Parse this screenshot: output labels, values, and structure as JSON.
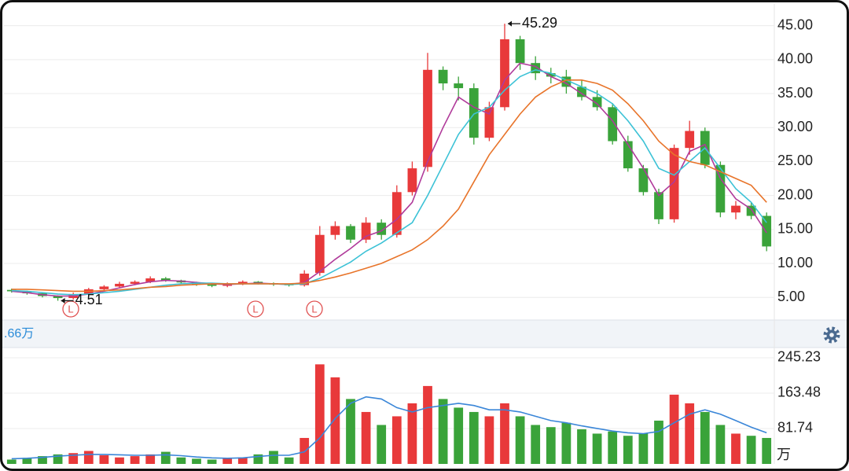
{
  "chart_data": {
    "type": "candlestick",
    "open": [
      6.1,
      5.9,
      5.6,
      5.2,
      4.9,
      5.5,
      6.2,
      6.6,
      7.0,
      7.3,
      7.8,
      7.5,
      7.2,
      6.9,
      6.7,
      7.0,
      7.3,
      7.1,
      6.9,
      6.8,
      8.6,
      14.2,
      15.5,
      13.5,
      16.0,
      14.2,
      20.5,
      24.2,
      38.5,
      36.5,
      35.8,
      28.5,
      33.0,
      43.0,
      39.5,
      38.0,
      37.5,
      36.0,
      34.5,
      33.0,
      28.0,
      24.0,
      20.5,
      16.5,
      27.0,
      29.5,
      24.5,
      17.5,
      18.5,
      17.0
    ],
    "high": [
      6.3,
      6.0,
      5.7,
      5.3,
      5.7,
      6.4,
      6.8,
      7.3,
      7.5,
      8.1,
      8.0,
      7.6,
      7.3,
      7.0,
      7.2,
      7.5,
      7.4,
      7.2,
      7.0,
      9.0,
      15.5,
      16.2,
      15.8,
      16.8,
      16.5,
      21.5,
      25.0,
      41.0,
      39.0,
      37.5,
      36.5,
      33.8,
      45.29,
      43.5,
      40.5,
      38.8,
      38.5,
      37.0,
      35.5,
      33.6,
      28.8,
      24.5,
      21.0,
      27.5,
      31.0,
      30.0,
      25.0,
      19.2,
      19.0,
      17.5
    ],
    "low": [
      5.7,
      5.4,
      5.0,
      4.51,
      4.7,
      5.3,
      6.0,
      6.4,
      6.8,
      7.1,
      7.3,
      7.0,
      6.7,
      6.5,
      6.5,
      6.8,
      6.9,
      6.7,
      6.6,
      6.6,
      8.2,
      13.5,
      13.0,
      13.0,
      13.5,
      13.8,
      20.0,
      23.5,
      35.5,
      34.0,
      27.5,
      28.0,
      32.5,
      38.5,
      37.0,
      36.5,
      35.0,
      34.0,
      32.5,
      27.5,
      23.5,
      20.0,
      15.8,
      16.0,
      26.0,
      24.0,
      16.8,
      16.5,
      16.5,
      11.8
    ],
    "close": [
      5.9,
      5.6,
      5.2,
      4.9,
      5.5,
      6.2,
      6.6,
      7.0,
      7.3,
      7.8,
      7.5,
      7.2,
      6.9,
      6.7,
      7.0,
      7.3,
      7.1,
      6.9,
      6.8,
      8.5,
      14.2,
      15.5,
      13.5,
      16.0,
      14.2,
      20.5,
      24.0,
      38.5,
      36.5,
      35.8,
      28.5,
      33.0,
      43.0,
      39.5,
      38.0,
      37.5,
      36.0,
      34.5,
      33.0,
      28.0,
      24.0,
      20.5,
      16.5,
      27.0,
      29.5,
      24.5,
      17.5,
      18.5,
      17.0,
      12.5
    ],
    "up_color": "#e8393a",
    "down_color": "#3aa33a",
    "moving_averages": [
      {
        "color": "#b03a9a",
        "values": [
          5.9,
          5.7,
          5.4,
          5.2,
          5.2,
          5.5,
          5.9,
          6.4,
          6.9,
          7.3,
          7.5,
          7.4,
          7.2,
          7.0,
          6.9,
          7.0,
          7.1,
          7.0,
          6.9,
          7.2,
          8.8,
          10.6,
          12.2,
          14.0,
          14.8,
          16.5,
          19.0,
          25.0,
          30.0,
          34.5,
          33.0,
          32.0,
          37.0,
          39.5,
          39.0,
          37.5,
          36.5,
          35.0,
          33.5,
          31.0,
          27.5,
          24.0,
          20.0,
          22.0,
          26.5,
          27.5,
          22.5,
          19.5,
          18.0,
          14.5
        ]
      },
      {
        "color": "#3cc2d6",
        "values": [
          6.0,
          5.9,
          5.7,
          5.5,
          5.4,
          5.5,
          5.7,
          5.9,
          6.2,
          6.5,
          6.8,
          7.0,
          7.1,
          7.1,
          7.0,
          7.0,
          7.0,
          7.0,
          6.9,
          7.0,
          7.8,
          9.0,
          10.2,
          11.8,
          13.0,
          14.5,
          16.0,
          20.0,
          24.5,
          29.0,
          32.0,
          33.0,
          35.5,
          37.5,
          38.5,
          38.0,
          37.0,
          36.0,
          35.0,
          33.5,
          31.0,
          28.0,
          24.0,
          23.0,
          25.0,
          27.0,
          24.0,
          21.0,
          19.0,
          16.0
        ]
      },
      {
        "color": "#e8742a",
        "values": [
          6.2,
          6.2,
          6.1,
          6.0,
          5.9,
          5.9,
          6.0,
          6.1,
          6.3,
          6.5,
          6.6,
          6.8,
          6.9,
          7.0,
          7.0,
          7.0,
          7.0,
          7.0,
          7.0,
          7.1,
          7.5,
          8.0,
          8.6,
          9.3,
          10.0,
          11.0,
          12.0,
          13.5,
          15.5,
          18.0,
          22.0,
          26.0,
          29.0,
          32.0,
          34.5,
          36.0,
          37.0,
          37.0,
          36.5,
          35.5,
          33.5,
          31.0,
          28.0,
          26.0,
          25.0,
          24.5,
          23.5,
          22.5,
          21.5,
          19.0
        ]
      }
    ],
    "ylim": [
      1.9,
      48.2
    ],
    "yticks": [
      {
        "value": 5,
        "label": "5.00"
      },
      {
        "value": 10,
        "label": "10.00"
      },
      {
        "value": 15,
        "label": "15.00"
      },
      {
        "value": 20,
        "label": "20.00"
      },
      {
        "value": 25,
        "label": "25.00"
      },
      {
        "value": 30,
        "label": "30.00"
      },
      {
        "value": 35,
        "label": "35.00"
      },
      {
        "value": 40,
        "label": "40.00"
      },
      {
        "value": 45,
        "label": "45.00"
      }
    ],
    "grid": true,
    "max_label": "45.29",
    "min_label": "4.51",
    "marker_label": "L",
    "info_text": ".66万",
    "volume": {
      "values": [
        10,
        14,
        18,
        22,
        25,
        30,
        20,
        15,
        18,
        22,
        28,
        15,
        12,
        10,
        12,
        15,
        22,
        30,
        15,
        60,
        230,
        200,
        150,
        120,
        90,
        110,
        140,
        180,
        150,
        130,
        120,
        110,
        140,
        110,
        90,
        85,
        95,
        80,
        70,
        75,
        65,
        70,
        100,
        160,
        140,
        120,
        90,
        70,
        65,
        60
      ],
      "average": {
        "color": "#3a86d8",
        "values": [
          12,
          13,
          15,
          18,
          20,
          22,
          22,
          21,
          20,
          20,
          21,
          19,
          16,
          14,
          13,
          14,
          17,
          20,
          20,
          28,
          60,
          105,
          140,
          155,
          150,
          130,
          120,
          130,
          135,
          140,
          135,
          125,
          125,
          120,
          110,
          100,
          95,
          88,
          82,
          76,
          72,
          70,
          75,
          95,
          115,
          125,
          115,
          100,
          85,
          72
        ]
      },
      "ylim": [
        0,
        267
      ],
      "yticks": [
        81.74,
        163.48,
        245.23
      ],
      "unit_label": "万"
    }
  }
}
